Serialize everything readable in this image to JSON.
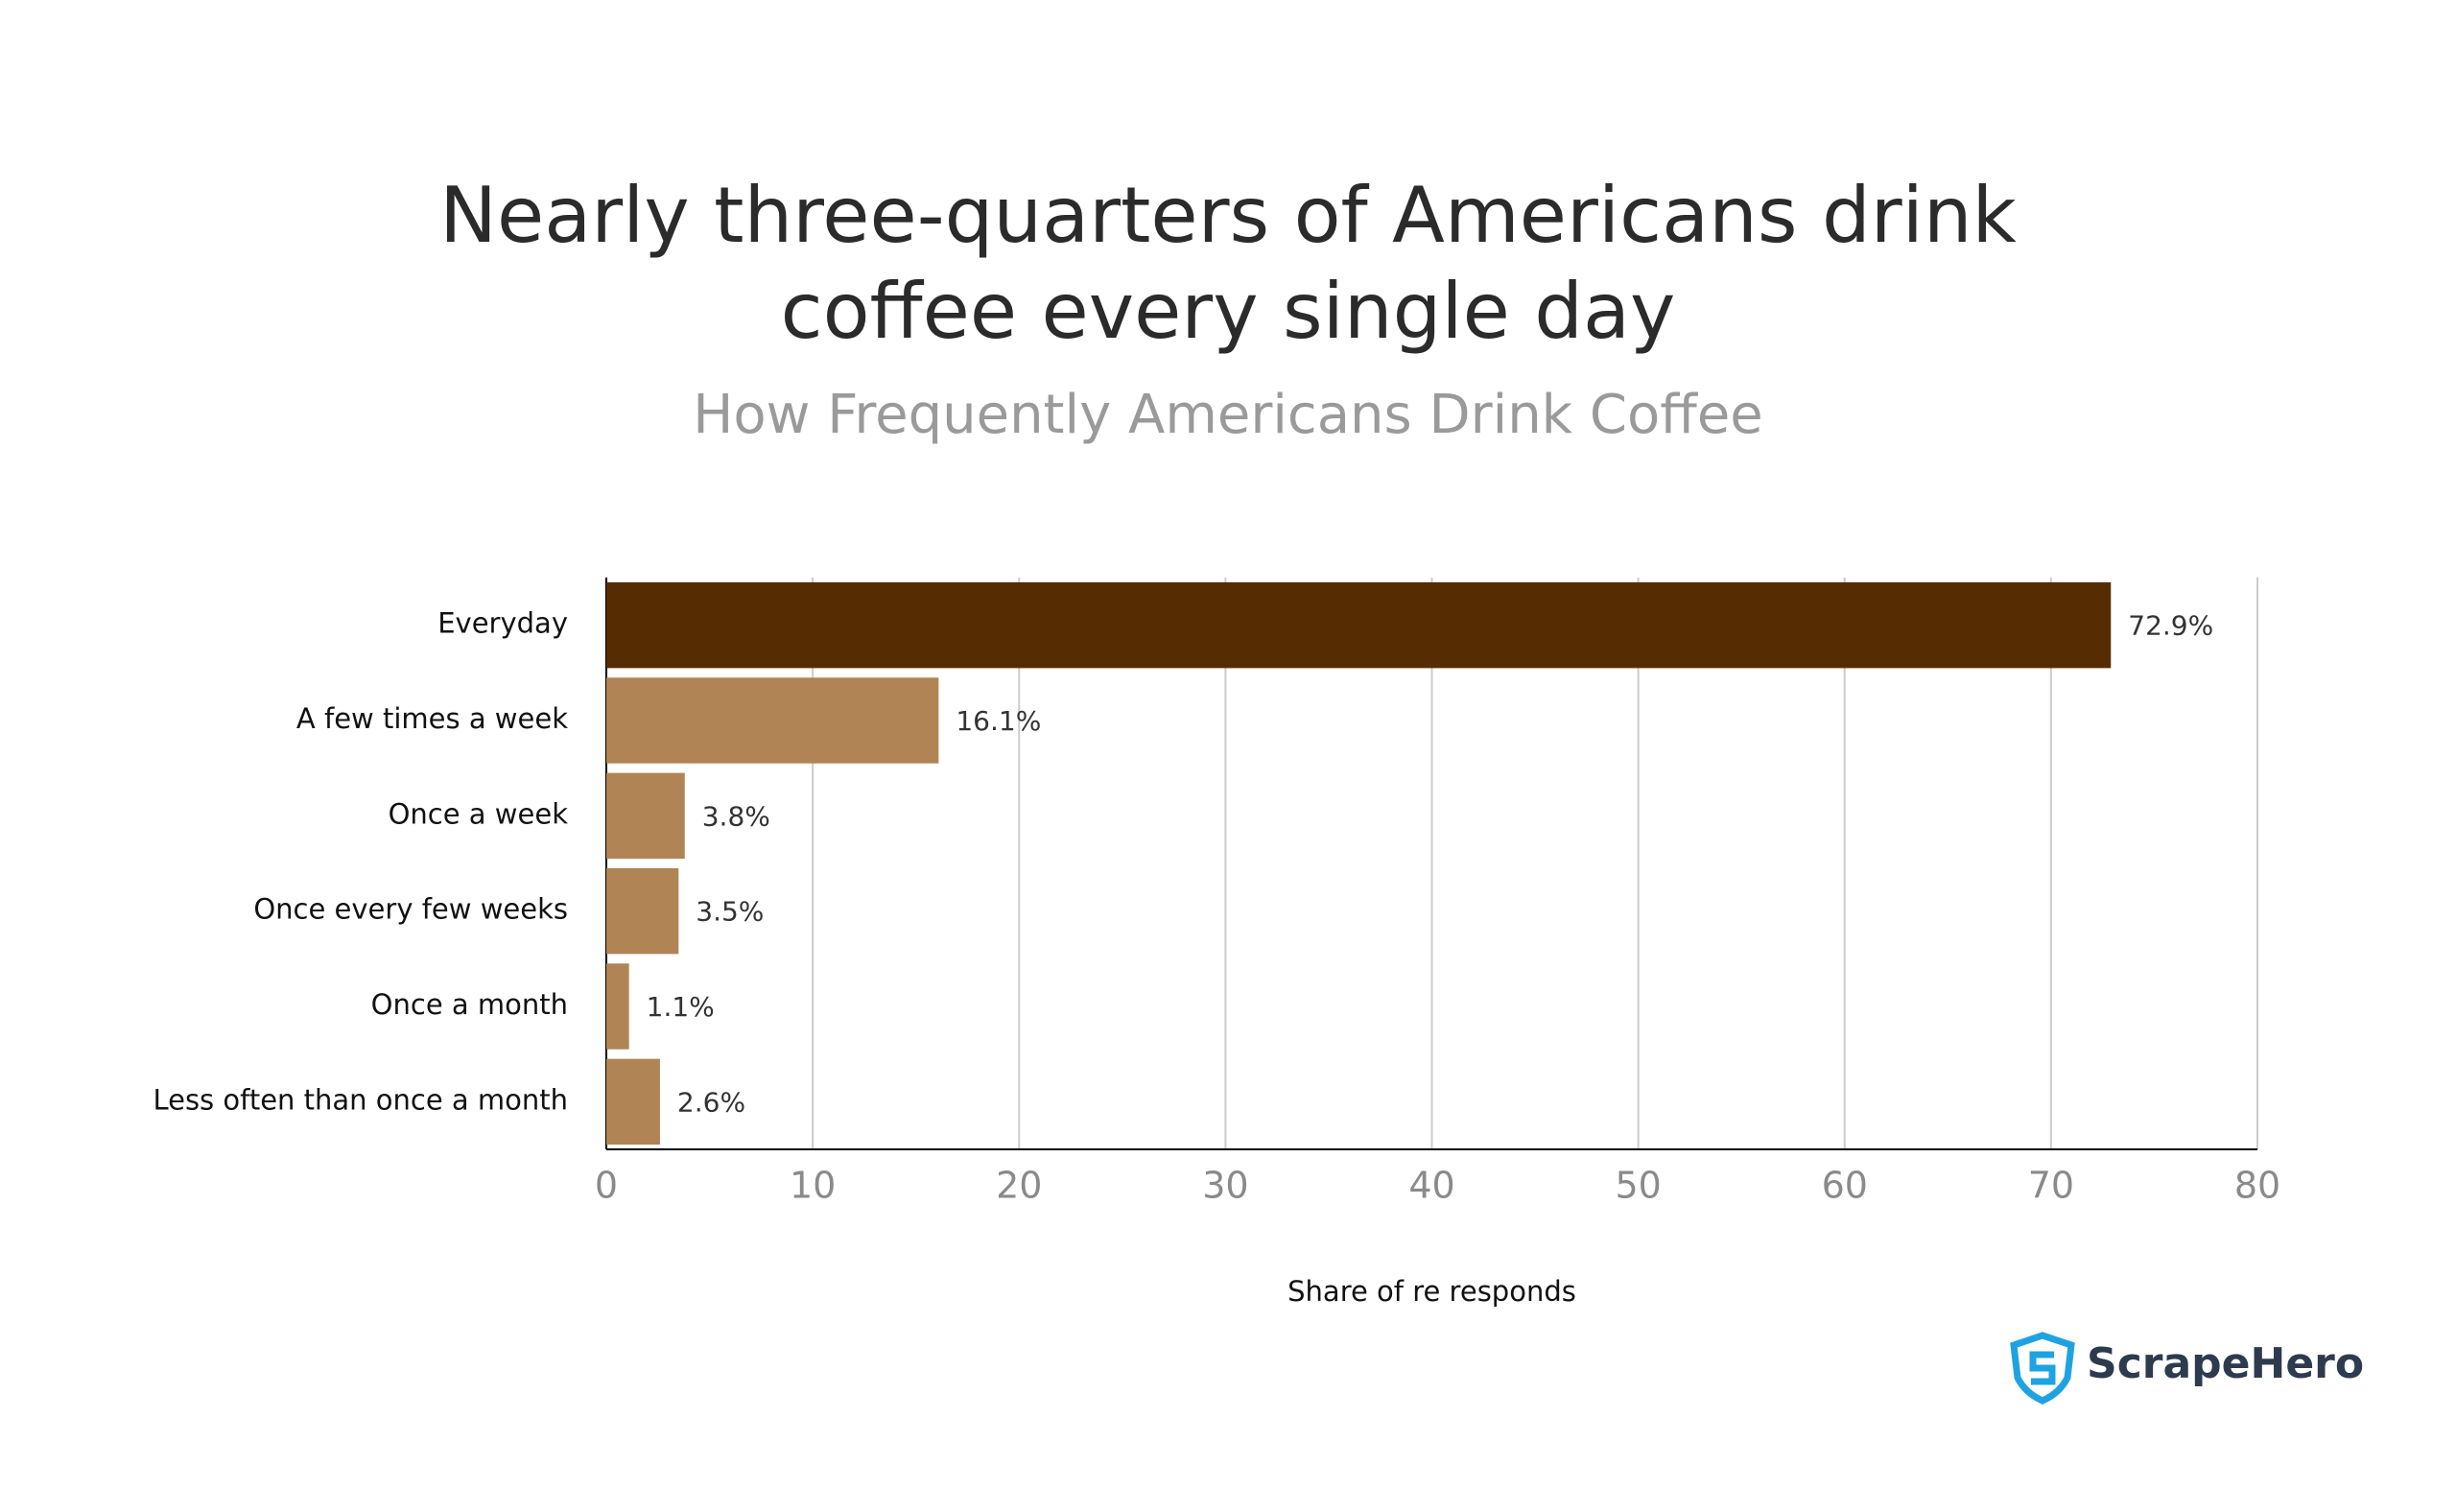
{
  "chart_data": {
    "type": "bar",
    "orientation": "horizontal",
    "title": "Nearly three-quarters of Americans drink coffee every single day",
    "subtitle": "How Frequently Americans Drink Coffee",
    "categories": [
      "Everyday",
      "A few times a week",
      "Once a week",
      "Once every few weeks",
      "Once a month",
      "Less often than once a month"
    ],
    "values": [
      72.9,
      16.1,
      3.8,
      3.5,
      1.1,
      2.6
    ],
    "value_labels": [
      "72.9%",
      "16.1%",
      "3.8%",
      "3.5%",
      "1.1%",
      "2.6%"
    ],
    "colors": [
      "#562c02",
      "#b08454",
      "#b08454",
      "#b08454",
      "#b08454",
      "#b08454"
    ],
    "xlim": [
      0,
      80
    ],
    "xticks": [
      0,
      10,
      20,
      30,
      40,
      50,
      60,
      70,
      80
    ],
    "xlabel": "Share of re responds",
    "grid": true
  },
  "logo": {
    "text": "ScrapeHero"
  }
}
